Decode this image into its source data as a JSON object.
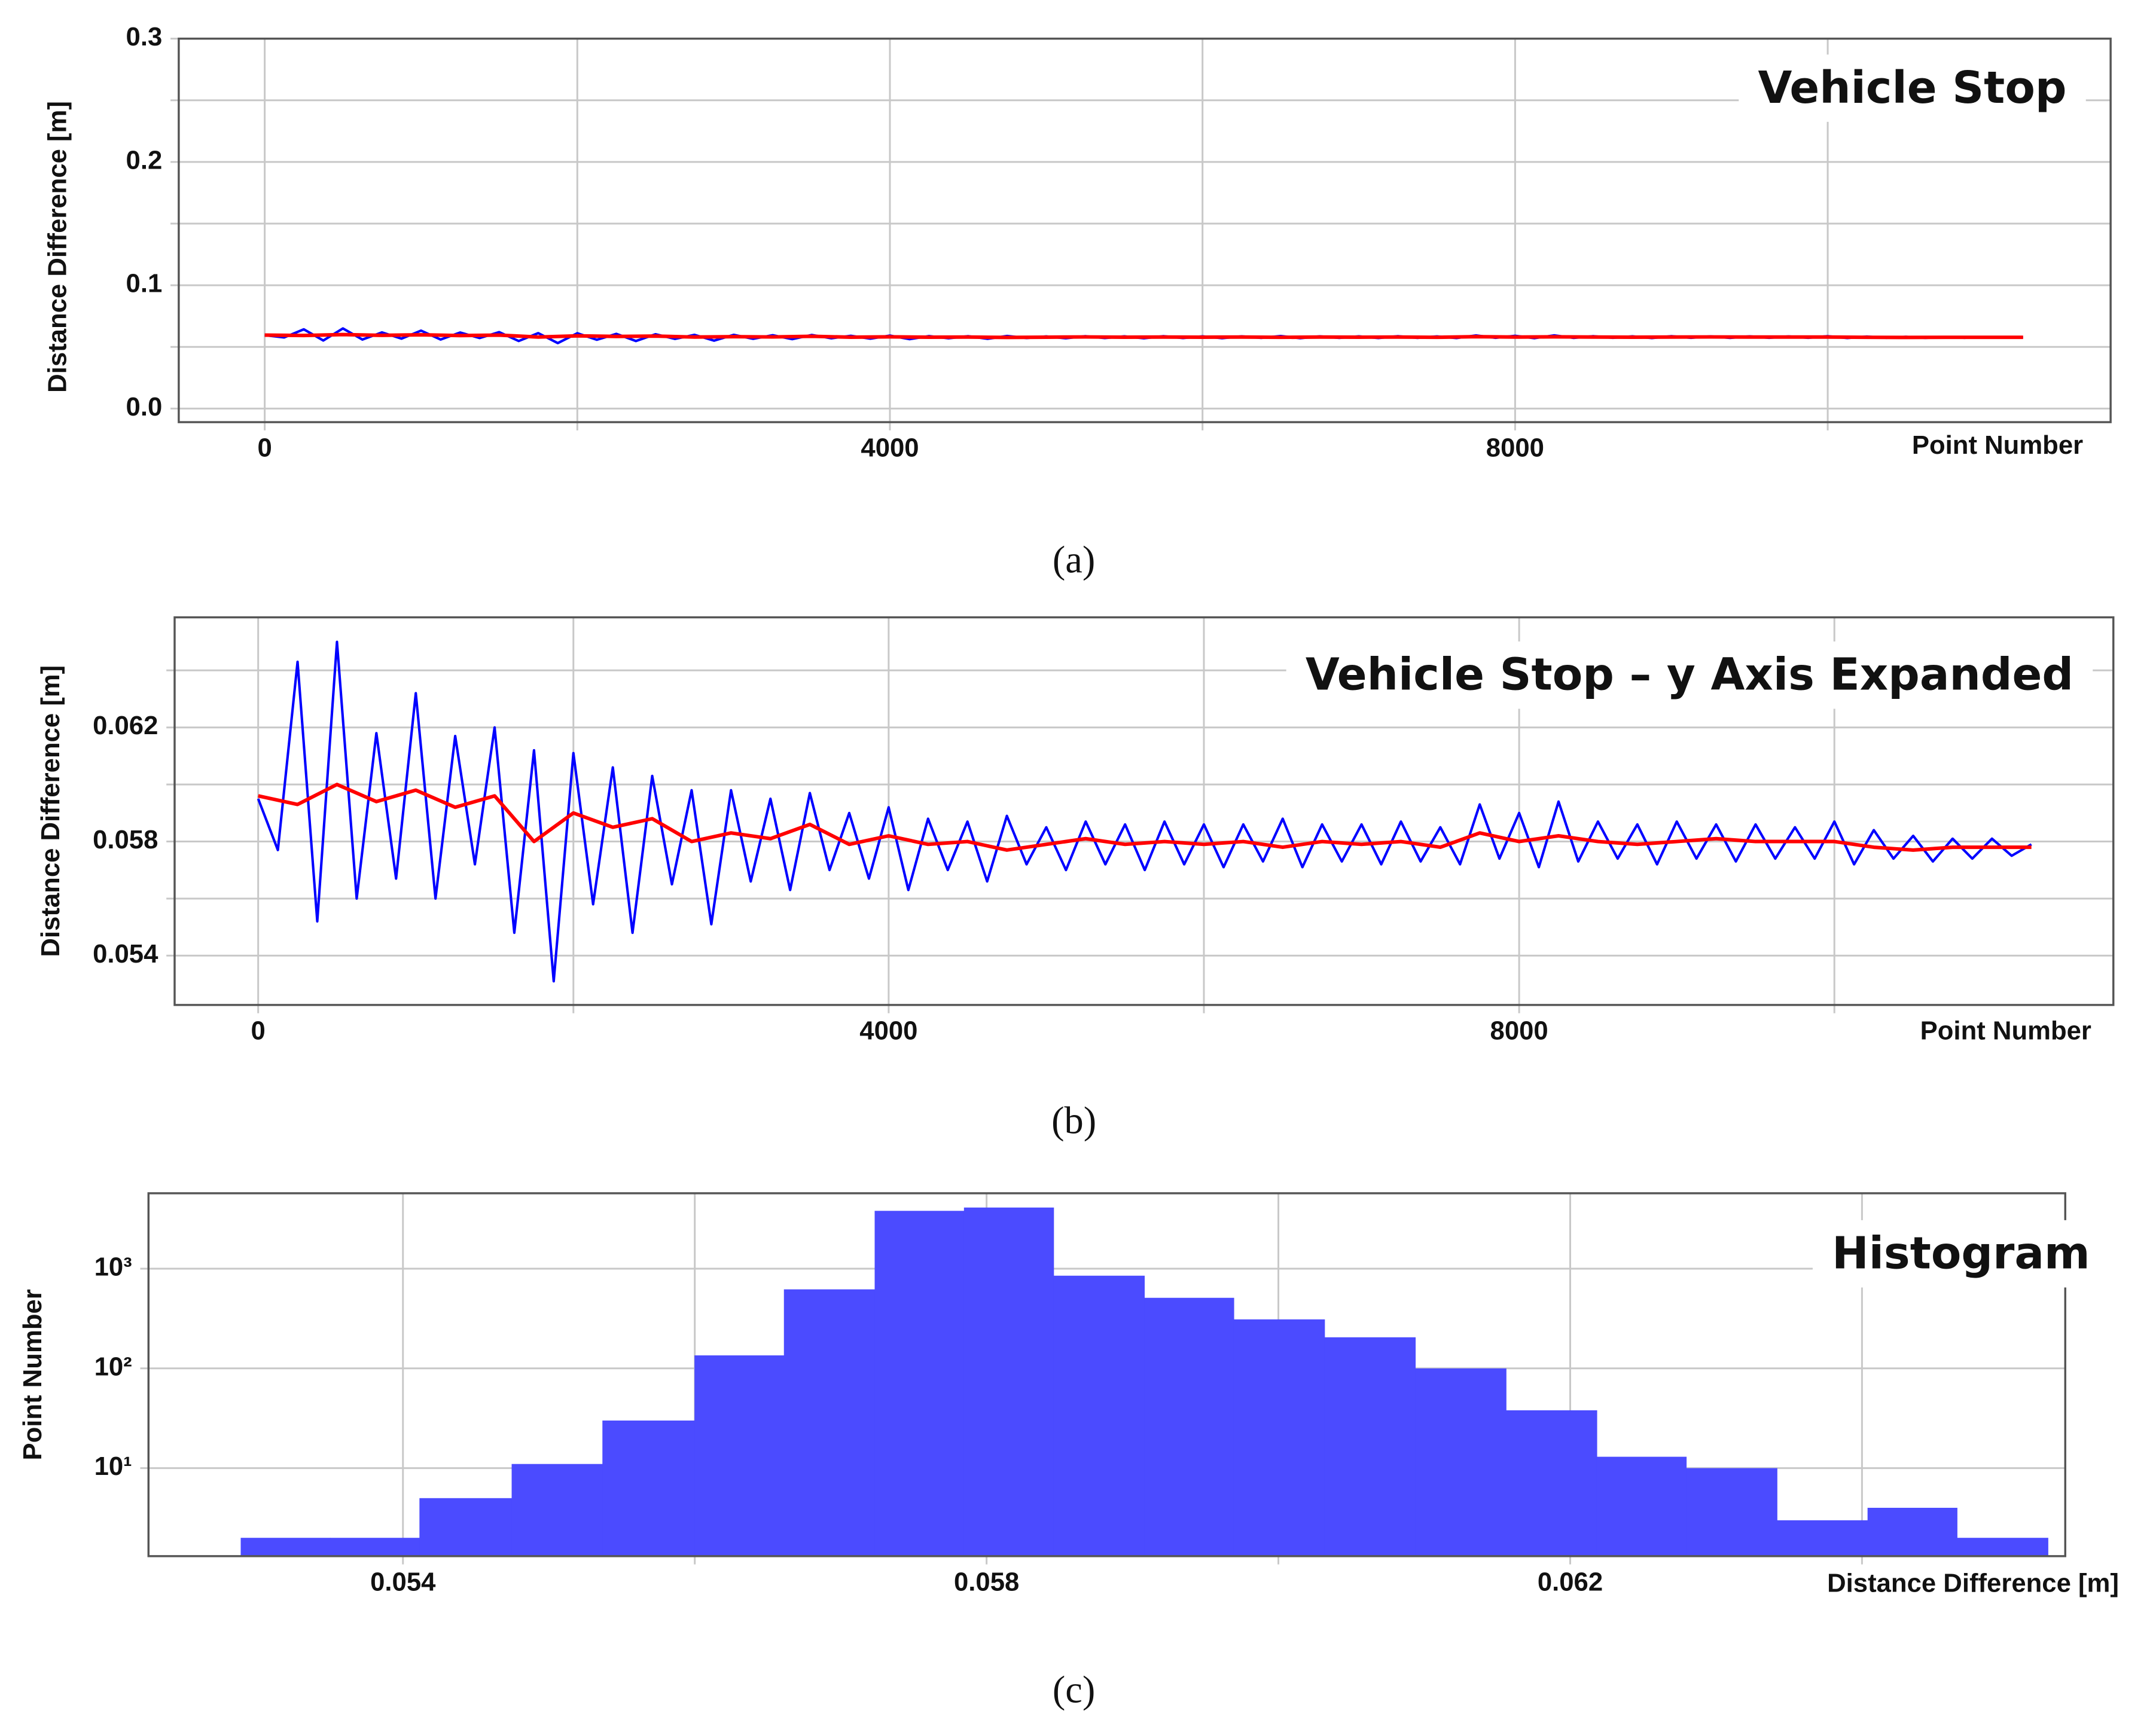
{
  "chart_data": [
    {
      "type": "line",
      "title": "Vehicle Stop",
      "caption": "(a)",
      "xlabel": "Point Number",
      "ylabel": "Distance Difference  [m]",
      "xlim": [
        -550,
        11810
      ],
      "xticks": [
        0,
        4000,
        8000
      ],
      "xgrid_minor": [
        2000,
        6000,
        10000
      ],
      "ylim": [
        -0.011,
        0.3
      ],
      "yticks": [
        {
          "value": 0,
          "label": "0.0"
        },
        0.1,
        0.2,
        0.3
      ],
      "ygrid_minor": [
        0.05,
        0.15,
        0.25
      ],
      "grid": true,
      "series": [
        {
          "color": "#0000ff",
          "x": [
            0,
            125,
            250,
            375,
            500,
            625,
            750,
            875,
            1000,
            1125,
            1250,
            1375,
            1500,
            1625,
            1750,
            1875,
            2000,
            2125,
            2250,
            2375,
            2500,
            2625,
            2750,
            2875,
            3000,
            3125,
            3250,
            3375,
            3500,
            3625,
            3750,
            3875,
            4000,
            4125,
            4250,
            4375,
            4500,
            4625,
            4750,
            4875,
            5000,
            5125,
            5250,
            5375,
            5500,
            5625,
            5750,
            5875,
            6000,
            6125,
            6250,
            6375,
            6500,
            6625,
            6750,
            6875,
            7000,
            7125,
            7250,
            7375,
            7500,
            7625,
            7750,
            7875,
            8000,
            8125,
            8250,
            8375,
            8500,
            8625,
            8750,
            8875,
            9000,
            9125,
            9250,
            9375,
            9500,
            9625,
            9750,
            9875,
            10000,
            10125,
            10250,
            10375,
            10500,
            10625,
            10750,
            10875,
            11000,
            11125,
            11250
          ],
          "values": [
            0.0595,
            0.0577,
            0.0643,
            0.0552,
            0.065,
            0.056,
            0.0618,
            0.0567,
            0.0632,
            0.056,
            0.0617,
            0.0572,
            0.062,
            0.0548,
            0.0612,
            0.0531,
            0.0611,
            0.0558,
            0.0606,
            0.0548,
            0.0603,
            0.0565,
            0.0598,
            0.0551,
            0.0598,
            0.0566,
            0.0595,
            0.0563,
            0.0597,
            0.057,
            0.059,
            0.0567,
            0.0592,
            0.0563,
            0.0588,
            0.057,
            0.0587,
            0.0566,
            0.0589,
            0.0572,
            0.0585,
            0.057,
            0.0587,
            0.0572,
            0.0586,
            0.057,
            0.0587,
            0.0572,
            0.0586,
            0.0571,
            0.0586,
            0.0573,
            0.0588,
            0.0571,
            0.0586,
            0.0573,
            0.0586,
            0.0572,
            0.0587,
            0.0573,
            0.0585,
            0.0572,
            0.0593,
            0.0574,
            0.059,
            0.0571,
            0.0594,
            0.0573,
            0.0587,
            0.0574,
            0.0586,
            0.0572,
            0.0587,
            0.0574,
            0.0586,
            0.0573,
            0.0586,
            0.0574,
            0.0585,
            0.0574,
            0.0587,
            0.0572,
            0.0584,
            0.0574,
            0.0582,
            0.0573,
            0.0581,
            0.0574,
            0.0581,
            0.0575,
            0.0579
          ]
        },
        {
          "color": "#ff0000",
          "x": [
            0,
            250,
            500,
            750,
            1000,
            1250,
            1500,
            1750,
            2000,
            2250,
            2500,
            2750,
            3000,
            3250,
            3500,
            3750,
            4000,
            4250,
            4500,
            4750,
            5000,
            5250,
            5500,
            5750,
            6000,
            6250,
            6500,
            6750,
            7000,
            7250,
            7500,
            7750,
            8000,
            8250,
            8500,
            8750,
            9000,
            9250,
            9500,
            9750,
            10000,
            10250,
            10500,
            10750,
            11000,
            11250
          ],
          "values": [
            0.0596,
            0.0593,
            0.06,
            0.0594,
            0.0598,
            0.0592,
            0.0596,
            0.058,
            0.059,
            0.0585,
            0.0588,
            0.058,
            0.0583,
            0.0581,
            0.0586,
            0.0579,
            0.0582,
            0.0579,
            0.058,
            0.0577,
            0.0579,
            0.0581,
            0.0579,
            0.058,
            0.0579,
            0.058,
            0.0578,
            0.058,
            0.0579,
            0.058,
            0.0578,
            0.0583,
            0.058,
            0.0582,
            0.058,
            0.0579,
            0.058,
            0.0581,
            0.058,
            0.058,
            0.058,
            0.0578,
            0.0577,
            0.0578,
            0.0578,
            0.0578
          ]
        }
      ]
    },
    {
      "type": "line",
      "title": "Vehicle Stop – y Axis Expanded",
      "caption": "(b)",
      "xlabel": "Point Number",
      "ylabel": "Distance Difference [m]",
      "xlim": [
        -530,
        11770
      ],
      "xticks": [
        0,
        4000,
        8000
      ],
      "xgrid_minor": [
        2000,
        6000,
        10000
      ],
      "ylim": [
        0.05227,
        0.06586
      ],
      "yticks": [
        0.054,
        0.058,
        0.062
      ],
      "ygrid_minor": [
        0.056,
        0.06,
        0.064
      ],
      "grid": true,
      "series": [
        {
          "color": "#0000ff",
          "x": [
            0,
            125,
            250,
            375,
            500,
            625,
            750,
            875,
            1000,
            1125,
            1250,
            1375,
            1500,
            1625,
            1750,
            1875,
            2000,
            2125,
            2250,
            2375,
            2500,
            2625,
            2750,
            2875,
            3000,
            3125,
            3250,
            3375,
            3500,
            3625,
            3750,
            3875,
            4000,
            4125,
            4250,
            4375,
            4500,
            4625,
            4750,
            4875,
            5000,
            5125,
            5250,
            5375,
            5500,
            5625,
            5750,
            5875,
            6000,
            6125,
            6250,
            6375,
            6500,
            6625,
            6750,
            6875,
            7000,
            7125,
            7250,
            7375,
            7500,
            7625,
            7750,
            7875,
            8000,
            8125,
            8250,
            8375,
            8500,
            8625,
            8750,
            8875,
            9000,
            9125,
            9250,
            9375,
            9500,
            9625,
            9750,
            9875,
            10000,
            10125,
            10250,
            10375,
            10500,
            10625,
            10750,
            10875,
            11000,
            11125,
            11250
          ],
          "values": [
            0.0595,
            0.0577,
            0.0643,
            0.0552,
            0.065,
            0.056,
            0.0618,
            0.0567,
            0.0632,
            0.056,
            0.0617,
            0.0572,
            0.062,
            0.0548,
            0.0612,
            0.0531,
            0.0611,
            0.0558,
            0.0606,
            0.0548,
            0.0603,
            0.0565,
            0.0598,
            0.0551,
            0.0598,
            0.0566,
            0.0595,
            0.0563,
            0.0597,
            0.057,
            0.059,
            0.0567,
            0.0592,
            0.0563,
            0.0588,
            0.057,
            0.0587,
            0.0566,
            0.0589,
            0.0572,
            0.0585,
            0.057,
            0.0587,
            0.0572,
            0.0586,
            0.057,
            0.0587,
            0.0572,
            0.0586,
            0.0571,
            0.0586,
            0.0573,
            0.0588,
            0.0571,
            0.0586,
            0.0573,
            0.0586,
            0.0572,
            0.0587,
            0.0573,
            0.0585,
            0.0572,
            0.0593,
            0.0574,
            0.059,
            0.0571,
            0.0594,
            0.0573,
            0.0587,
            0.0574,
            0.0586,
            0.0572,
            0.0587,
            0.0574,
            0.0586,
            0.0573,
            0.0586,
            0.0574,
            0.0585,
            0.0574,
            0.0587,
            0.0572,
            0.0584,
            0.0574,
            0.0582,
            0.0573,
            0.0581,
            0.0574,
            0.0581,
            0.0575,
            0.0579
          ]
        },
        {
          "color": "#ff0000",
          "x": [
            0,
            250,
            500,
            750,
            1000,
            1250,
            1500,
            1750,
            2000,
            2250,
            2500,
            2750,
            3000,
            3250,
            3500,
            3750,
            4000,
            4250,
            4500,
            4750,
            5000,
            5250,
            5500,
            5750,
            6000,
            6250,
            6500,
            6750,
            7000,
            7250,
            7500,
            7750,
            8000,
            8250,
            8500,
            8750,
            9000,
            9250,
            9500,
            9750,
            10000,
            10250,
            10500,
            10750,
            11000,
            11250
          ],
          "values": [
            0.0596,
            0.0593,
            0.06,
            0.0594,
            0.0598,
            0.0592,
            0.0596,
            0.058,
            0.059,
            0.0585,
            0.0588,
            0.058,
            0.0583,
            0.0581,
            0.0586,
            0.0579,
            0.0582,
            0.0579,
            0.058,
            0.0577,
            0.0579,
            0.0581,
            0.0579,
            0.058,
            0.0579,
            0.058,
            0.0578,
            0.058,
            0.0579,
            0.058,
            0.0578,
            0.0583,
            0.058,
            0.0582,
            0.058,
            0.0579,
            0.058,
            0.0581,
            0.058,
            0.058,
            0.058,
            0.0578,
            0.0577,
            0.0578,
            0.0578,
            0.0578
          ]
        }
      ]
    },
    {
      "type": "histogram",
      "title": "Histogram",
      "caption": "(c)",
      "xlabel": "Distance Difference [m]",
      "ylabel": "Point Number",
      "xlim": [
        0.052256,
        0.065393
      ],
      "xticks": [
        0.054,
        0.058,
        0.062
      ],
      "xgrid_minor": [
        0.056,
        0.06,
        0.064
      ],
      "ylim": [
        1.31,
        5700
      ],
      "ylog": true,
      "yticks": [
        {
          "value": 10,
          "label": "10¹"
        },
        {
          "value": 100,
          "label": "10²"
        },
        {
          "value": 1000,
          "label": "10³"
        }
      ],
      "grid": true,
      "color": "#4b4bff",
      "bins": [
        0.052888,
        0.0535,
        0.054113,
        0.054745,
        0.055367,
        0.055998,
        0.056611,
        0.057233,
        0.057845,
        0.058458,
        0.05908,
        0.059693,
        0.060315,
        0.060937,
        0.061559,
        0.062181,
        0.062794,
        0.063416,
        0.064038,
        0.06465,
        0.065273
      ],
      "values": [
        2,
        2,
        5,
        11,
        30,
        135,
        620,
        3800,
        4100,
        850,
        510,
        310,
        205,
        100,
        38,
        13,
        10,
        3,
        4,
        2
      ]
    }
  ]
}
